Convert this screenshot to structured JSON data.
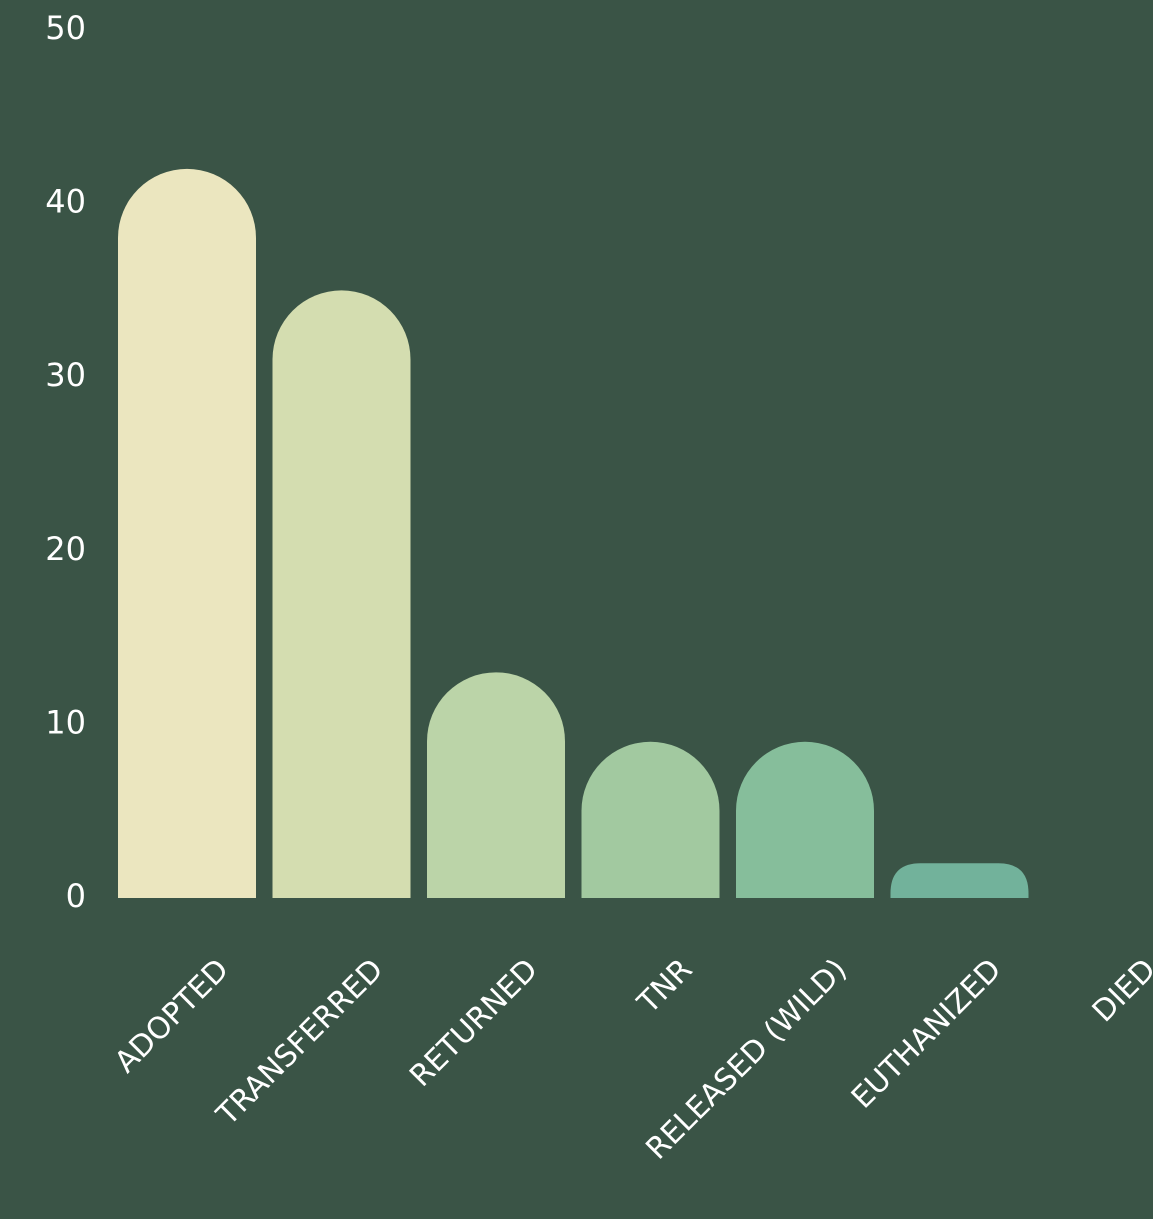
{
  "chart_data": {
    "type": "bar",
    "title": "",
    "xlabel": "",
    "ylabel": "",
    "ylim": [
      0,
      50
    ],
    "y_ticks": [
      "0",
      "10",
      "20",
      "30",
      "40",
      "50"
    ],
    "grid": false,
    "categories": [
      "ADOPTED",
      "TRANSFERRED",
      "RETURNED",
      "TNR",
      "RELEASED (WILD)",
      "EUTHANIZED",
      "DIED"
    ],
    "values": [
      42,
      35,
      13,
      9,
      9,
      2,
      0
    ],
    "colors": [
      "#ebe6bf",
      "#d4ddb0",
      "#bbd4a8",
      "#a2c9a0",
      "#86be9b",
      "#72b29b",
      "#5fa597"
    ],
    "background": "#3a5446",
    "text_color": "#ffffff"
  }
}
